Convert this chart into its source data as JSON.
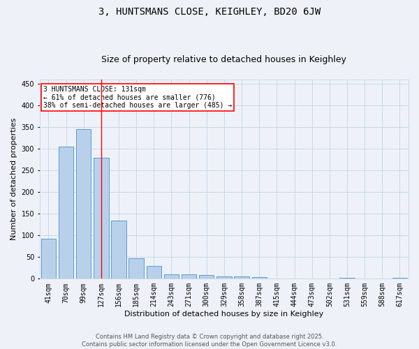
{
  "title": "3, HUNTSMANS CLOSE, KEIGHLEY, BD20 6JW",
  "subtitle": "Size of property relative to detached houses in Keighley",
  "xlabel": "Distribution of detached houses by size in Keighley",
  "ylabel": "Number of detached properties",
  "categories": [
    "41sqm",
    "70sqm",
    "99sqm",
    "127sqm",
    "156sqm",
    "185sqm",
    "214sqm",
    "243sqm",
    "271sqm",
    "300sqm",
    "329sqm",
    "358sqm",
    "387sqm",
    "415sqm",
    "444sqm",
    "473sqm",
    "502sqm",
    "531sqm",
    "559sqm",
    "588sqm",
    "617sqm"
  ],
  "values": [
    93,
    305,
    345,
    280,
    135,
    47,
    30,
    10,
    10,
    8,
    5,
    5,
    3,
    1,
    1,
    1,
    0,
    2,
    0,
    0,
    2
  ],
  "bar_color": "#b8d0ea",
  "bar_edge_color": "#5b9bd5",
  "grid_color": "#c8d8e8",
  "background_color": "#eef2f8",
  "annotation_text": "3 HUNTSMANS CLOSE: 131sqm\n← 61% of detached houses are smaller (776)\n38% of semi-detached houses are larger (485) →",
  "vline_x_index": 3,
  "ylim": [
    0,
    460
  ],
  "yticks": [
    0,
    50,
    100,
    150,
    200,
    250,
    300,
    350,
    400,
    450
  ],
  "footer_text": "Contains HM Land Registry data © Crown copyright and database right 2025.\nContains public sector information licensed under the Open Government Licence v3.0.",
  "title_fontsize": 10,
  "subtitle_fontsize": 9,
  "axis_label_fontsize": 8,
  "tick_fontsize": 7,
  "annotation_fontsize": 7,
  "footer_fontsize": 6
}
